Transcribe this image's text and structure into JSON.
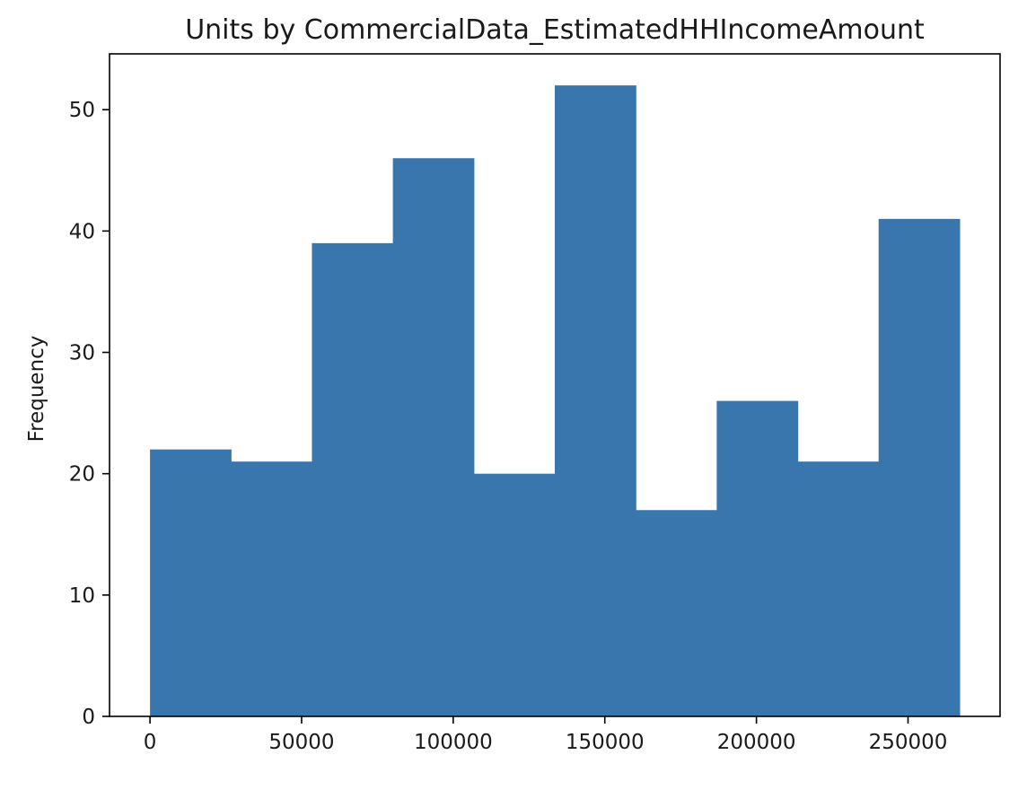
{
  "chart_data": {
    "type": "bar",
    "title": "Units by CommercialData_EstimatedHHIncomeAmount",
    "xlabel": "",
    "ylabel": "Frequency",
    "bin_edges": [
      0,
      26700,
      53400,
      80100,
      106800,
      133500,
      160200,
      186900,
      213600,
      240300,
      267000
    ],
    "values": [
      22,
      21,
      39,
      46,
      20,
      52,
      17,
      26,
      21,
      41
    ],
    "xlim": [
      -13350,
      280350
    ],
    "ylim": [
      0,
      54.6
    ],
    "xticks": [
      0,
      50000,
      100000,
      150000,
      200000,
      250000
    ],
    "xtick_labels": [
      "0",
      "50000",
      "100000",
      "150000",
      "200000",
      "250000"
    ],
    "yticks": [
      0,
      10,
      20,
      30,
      40,
      50
    ],
    "ytick_labels": [
      "0",
      "10",
      "20",
      "30",
      "40",
      "50"
    ],
    "grid": false,
    "legend": "none",
    "bar_color": "#3a76ae"
  }
}
